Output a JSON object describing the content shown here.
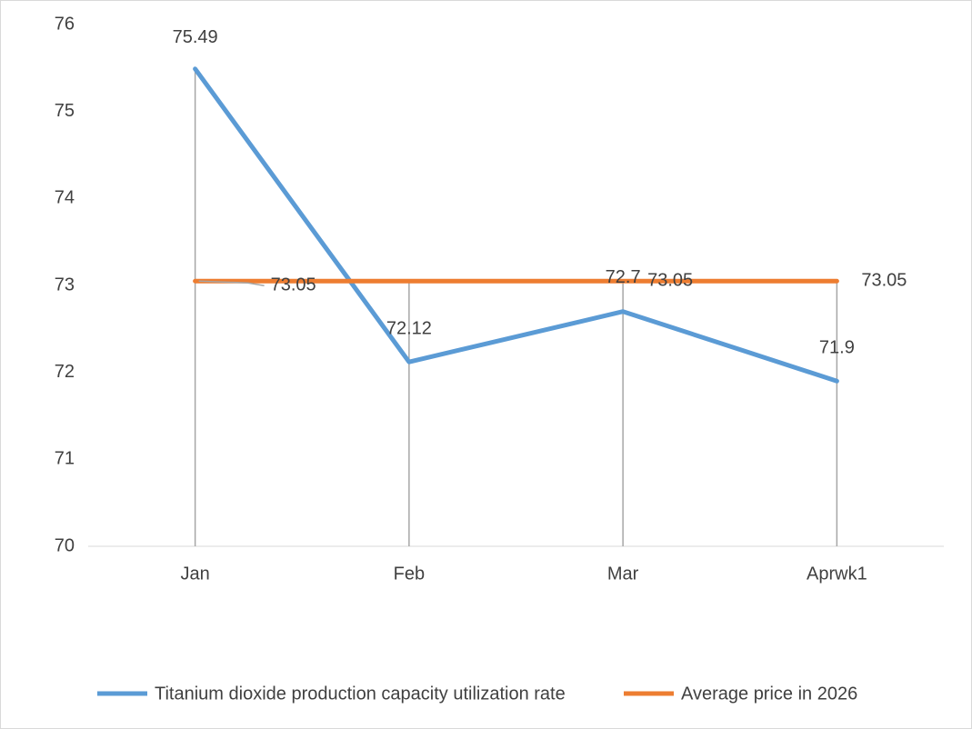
{
  "chart_data": {
    "type": "line",
    "categories": [
      "Jan",
      "Feb",
      "Mar",
      "Aprwk1"
    ],
    "series": [
      {
        "name": "Titanium dioxide production capacity utilization rate",
        "color": "#5b9bd5",
        "values": [
          75.49,
          72.12,
          72.7,
          71.9
        ]
      },
      {
        "name": "Average price in 2026",
        "color": "#ed7d31",
        "values": [
          73.05,
          73.05,
          73.05,
          73.05
        ]
      }
    ],
    "ylim": [
      70,
      76
    ],
    "yticks": [
      70,
      71,
      72,
      73,
      74,
      75,
      76
    ],
    "grid": false,
    "legend": "bottom"
  }
}
